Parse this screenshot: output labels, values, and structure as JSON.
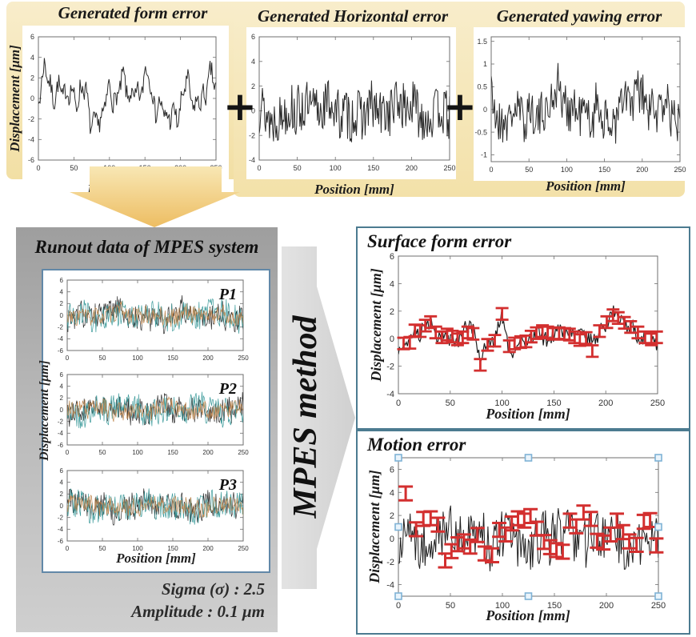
{
  "top_band": {
    "plus_sign": "+"
  },
  "runout_panel": {
    "title": "Runout data of MPES system",
    "ylabel": "Displacement [μm]",
    "xlabel": "Position [mm]",
    "sigma_line": "Sigma (σ) : 2.5",
    "amplitude_line": "Amplitude : 0.1 μm"
  },
  "mpes_arrow": {
    "label": "MPES method"
  },
  "colors": {
    "band_yellow": "#F5E5B4",
    "arrow_orange": "#EDBD62",
    "panel_gray": "#B9B9B9",
    "mpes_gray": "#DADADA",
    "result_border": "#4C7B90",
    "inner_border": "#6288A8",
    "errorbar_red": "#D32F2F",
    "handle_blue": "#7FB2D6",
    "trace_black": "#2B2B2B",
    "trace_teal": "#3D9B9B",
    "trace_tan": "#C08850"
  },
  "chart_data": [
    {
      "id": "form",
      "type": "line",
      "title": "Generated form error",
      "xlabel": "Position [mm]",
      "ylabel": "Displacement [μm]",
      "xlim": [
        0,
        250
      ],
      "ylim": [
        -6,
        6
      ],
      "xticks": [
        0,
        50,
        100,
        150,
        200,
        250
      ],
      "yticks": [
        -6,
        -4,
        -2,
        0,
        2,
        4,
        6
      ],
      "series": [
        {
          "name": "form-error",
          "color": "#2b2b2b",
          "width": 1,
          "seed": 7,
          "n": 210,
          "noise": 1.0,
          "smooth": 2.6
        }
      ]
    },
    {
      "id": "horiz",
      "type": "line",
      "title": "Generated Horizontal error",
      "xlabel": "Position [mm]",
      "ylabel": "",
      "xlim": [
        0,
        250
      ],
      "ylim": [
        -4,
        6
      ],
      "xticks": [
        0,
        50,
        100,
        150,
        200,
        250
      ],
      "yticks": [
        -4,
        -2,
        0,
        2,
        4,
        6
      ],
      "series": [
        {
          "name": "horizontal-error",
          "color": "#2b2b2b",
          "width": 1,
          "seed": 13,
          "n": 240,
          "noise": 2.1,
          "smooth": 0.7,
          "clip": [
            -3.6,
            3.4
          ]
        }
      ]
    },
    {
      "id": "yaw",
      "type": "line",
      "title": "Generated yawing error",
      "xlabel": "Position [mm]",
      "ylabel": "",
      "xlim": [
        0,
        250
      ],
      "ylim": [
        -1.15,
        1.6
      ],
      "xticks": [
        0,
        50,
        100,
        150,
        200,
        250
      ],
      "yticks": [
        -1,
        -0.5,
        0,
        0.5,
        1,
        1.5
      ],
      "series": [
        {
          "name": "yawing-error",
          "color": "#2b2b2b",
          "width": 1,
          "seed": 21,
          "n": 230,
          "noise": 0.52,
          "smooth": 0.4,
          "clip": [
            -1.05,
            1.45
          ]
        }
      ]
    },
    {
      "id": "p1",
      "type": "line",
      "corner_label": "P1",
      "xlim": [
        0,
        250
      ],
      "ylim": [
        -6,
        6
      ],
      "xticks": [
        0,
        50,
        100,
        150,
        200,
        250
      ],
      "yticks": [
        -6,
        -4,
        -2,
        0,
        2,
        4,
        6
      ],
      "series": [
        {
          "name": "probe1-black",
          "color": "#2e2e2e",
          "width": 0.7,
          "seed": 31,
          "n": 240,
          "noise": 2.2,
          "smooth": 1.1
        },
        {
          "name": "probe1-teal",
          "color": "#3d9b9b",
          "width": 0.7,
          "seed": 32,
          "n": 240,
          "noise": 2.4,
          "smooth": 0.9
        },
        {
          "name": "probe1-tan",
          "color": "#c08850",
          "width": 0.7,
          "seed": 33,
          "n": 240,
          "noise": 1.5,
          "smooth": 0.7
        }
      ]
    },
    {
      "id": "p2",
      "type": "line",
      "corner_label": "P2",
      "xlim": [
        0,
        250
      ],
      "ylim": [
        -6,
        6
      ],
      "xticks": [
        0,
        50,
        100,
        150,
        200,
        250
      ],
      "yticks": [
        -6,
        -4,
        -2,
        0,
        2,
        4,
        6
      ],
      "series": [
        {
          "name": "probe2-black",
          "color": "#2e2e2e",
          "width": 0.7,
          "seed": 41,
          "n": 240,
          "noise": 2.2,
          "smooth": 1.1
        },
        {
          "name": "probe2-teal",
          "color": "#3d9b9b",
          "width": 0.7,
          "seed": 42,
          "n": 240,
          "noise": 2.4,
          "smooth": 0.9
        },
        {
          "name": "probe2-tan",
          "color": "#c08850",
          "width": 0.7,
          "seed": 43,
          "n": 240,
          "noise": 1.5,
          "smooth": 0.7
        }
      ]
    },
    {
      "id": "p3",
      "type": "line",
      "corner_label": "P3",
      "xlim": [
        0,
        250
      ],
      "ylim": [
        -6,
        6
      ],
      "xticks": [
        0,
        50,
        100,
        150,
        200,
        250
      ],
      "yticks": [
        -6,
        -4,
        -2,
        0,
        2,
        4,
        6
      ],
      "series": [
        {
          "name": "probe3-black",
          "color": "#2e2e2e",
          "width": 0.7,
          "seed": 51,
          "n": 240,
          "noise": 2.2,
          "smooth": 1.1
        },
        {
          "name": "probe3-teal",
          "color": "#3d9b9b",
          "width": 0.7,
          "seed": 52,
          "n": 240,
          "noise": 2.4,
          "smooth": 0.9
        },
        {
          "name": "probe3-tan",
          "color": "#c08850",
          "width": 0.7,
          "seed": 53,
          "n": 240,
          "noise": 1.5,
          "smooth": 0.7
        }
      ]
    },
    {
      "id": "surface",
      "type": "line",
      "title": "Surface form error",
      "xlabel": "Position [mm]",
      "ylabel": "Displacement [μm]",
      "xlim": [
        0,
        250
      ],
      "ylim": [
        -4,
        6
      ],
      "xticks": [
        0,
        50,
        100,
        150,
        200,
        250
      ],
      "yticks": [
        -4,
        -2,
        0,
        2,
        4,
        6
      ],
      "series": [
        {
          "name": "reconstructed-form",
          "color": "#1f1f1f",
          "width": 1.2,
          "seed": 61,
          "n": 230,
          "noise": 0.55,
          "smooth": 0.5,
          "follow": true,
          "clip": [
            -2.6,
            2.5
          ]
        }
      ],
      "errorbars": {
        "color": "#d32f2f",
        "half": 0.42,
        "cap": 8,
        "width": 2.8,
        "points": [
          [
            5,
            -0.35
          ],
          [
            11,
            -0.3
          ],
          [
            16,
            0.6
          ],
          [
            21,
            0.55
          ],
          [
            26,
            0.95
          ],
          [
            31,
            1.2
          ],
          [
            36,
            0.45
          ],
          [
            42,
            0.1
          ],
          [
            47,
            0.3
          ],
          [
            52,
            0.15
          ],
          [
            57,
            -0.05
          ],
          [
            62,
            0.1
          ],
          [
            67,
            0.45
          ],
          [
            72,
            0.35
          ],
          [
            79,
            -1.9
          ],
          [
            86,
            -0.45
          ],
          [
            93,
            -0.15
          ],
          [
            100,
            1.8
          ],
          [
            107,
            -0.55
          ],
          [
            112,
            -0.35
          ],
          [
            118,
            -0.25
          ],
          [
            123,
            -0.2
          ],
          [
            128,
            0.15
          ],
          [
            133,
            0.4
          ],
          [
            139,
            0.55
          ],
          [
            144,
            0.45
          ],
          [
            149,
            0.35
          ],
          [
            155,
            0.4
          ],
          [
            160,
            0.35
          ],
          [
            165,
            0.3
          ],
          [
            170,
            0.1
          ],
          [
            175,
            -0.1
          ],
          [
            181,
            0.05
          ],
          [
            187,
            -0.9
          ],
          [
            194,
            0.55
          ],
          [
            201,
            1.2
          ],
          [
            207,
            1.7
          ],
          [
            212,
            1.5
          ],
          [
            218,
            1.15
          ],
          [
            224,
            0.85
          ],
          [
            231,
            0.45
          ],
          [
            238,
            0.1
          ],
          [
            244,
            -0.05
          ],
          [
            249,
            0.1
          ]
        ]
      }
    },
    {
      "id": "motion",
      "type": "line",
      "title": "Motion error",
      "xlabel": "Position [mm]",
      "ylabel": "Displacement [μm]",
      "xlim": [
        0,
        250
      ],
      "ylim": [
        -5,
        7
      ],
      "xticks": [
        0,
        50,
        100,
        150,
        200,
        250
      ],
      "yticks": [
        -4,
        -2,
        0,
        2,
        4,
        6
      ],
      "series": [
        {
          "name": "motion-error",
          "color": "#1f1f1f",
          "width": 1,
          "seed": 71,
          "n": 245,
          "noise": 2.4,
          "smooth": 0.9,
          "clip": [
            -4.5,
            4.8
          ]
        }
      ],
      "errorbars": {
        "color": "#d32f2f",
        "half": 0.6,
        "cap": 9,
        "width": 3,
        "points": [
          [
            7,
            3.9
          ],
          [
            17,
            0.8
          ],
          [
            24,
            1.7
          ],
          [
            31,
            1.75
          ],
          [
            38,
            1.2
          ],
          [
            45,
            -1.9
          ],
          [
            51,
            -1.1
          ],
          [
            57,
            -0.5
          ],
          [
            63,
            -0.25
          ],
          [
            69,
            -0.7
          ],
          [
            76,
            0.3
          ],
          [
            83,
            -1.3
          ],
          [
            90,
            -1.45
          ],
          [
            97,
            0.75
          ],
          [
            103,
            0.35
          ],
          [
            109,
            1.3
          ],
          [
            115,
            1.75
          ],
          [
            121,
            1.55
          ],
          [
            127,
            1.95
          ],
          [
            133,
            0.85
          ],
          [
            140,
            -0.3
          ],
          [
            146,
            -0.75
          ],
          [
            152,
            -1.0
          ],
          [
            158,
            -1.15
          ],
          [
            165,
            1.55
          ],
          [
            171,
            1.05
          ],
          [
            178,
            2.25
          ],
          [
            185,
            1.7
          ],
          [
            191,
            -0.2
          ],
          [
            197,
            -0.35
          ],
          [
            204,
            0.35
          ],
          [
            210,
            1.55
          ],
          [
            216,
            0.55
          ],
          [
            222,
            -0.25
          ],
          [
            229,
            -0.55
          ],
          [
            236,
            1.45
          ],
          [
            242,
            1.6
          ],
          [
            248,
            -0.6
          ]
        ]
      },
      "handles": {
        "color": "#7fb2d6",
        "fill": "#eaf4fb",
        "size": 8
      }
    }
  ]
}
